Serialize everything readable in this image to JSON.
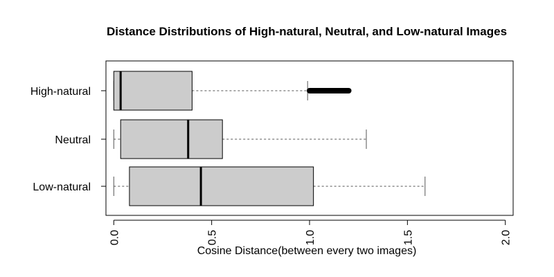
{
  "chart_data": {
    "type": "boxplot",
    "orientation": "horizontal",
    "title": "Distance Distributions of High-natural, Neutral, and Low-natural Images",
    "xlabel": "Cosine Distance(between every two images)",
    "ylabel": "",
    "xlim": [
      -0.04,
      2.04
    ],
    "xticks": [
      0.0,
      0.5,
      1.0,
      1.5,
      2.0
    ],
    "xtick_labels": [
      "0.0",
      "0.5",
      "1.0",
      "1.5",
      "2.0"
    ],
    "grid": false,
    "colors": {
      "box_fill": "#cccccc",
      "box_stroke": "#000000",
      "whisker": "#555555",
      "outlier": "#000000"
    },
    "series": [
      {
        "name": "High-natural",
        "min": 0.0,
        "q1": 0.0,
        "median": 0.035,
        "q3": 0.4,
        "max": 0.99,
        "outliers_range": [
          1.0,
          1.2
        ]
      },
      {
        "name": "Neutral",
        "min": 0.0,
        "q1": 0.035,
        "median": 0.38,
        "q3": 0.555,
        "max": 1.29
      },
      {
        "name": "Low-natural",
        "min": 0.0,
        "q1": 0.08,
        "median": 0.445,
        "q3": 1.02,
        "max": 1.59
      }
    ]
  }
}
